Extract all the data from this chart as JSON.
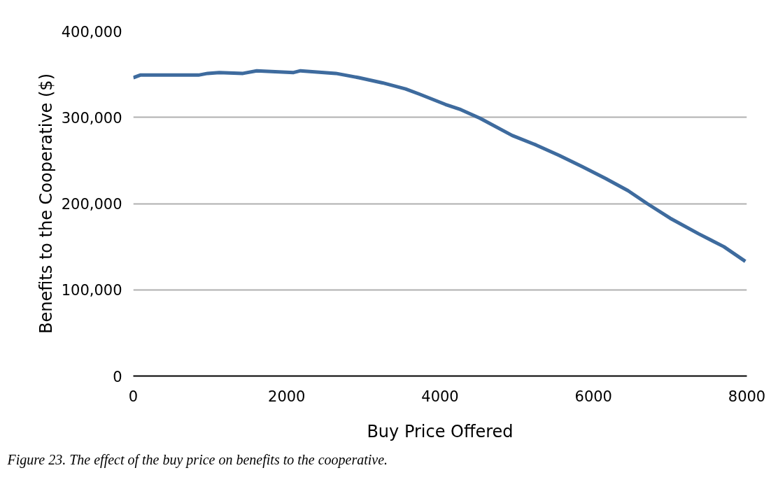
{
  "chart_data": {
    "type": "line",
    "xlabel": "Buy Price Offered",
    "ylabel": "Benefits to the Cooperative ($)",
    "annotations": [
      "Figure 23. The effect of  the buy price on benefits to the cooperative."
    ],
    "x": [
      0,
      90,
      500,
      850,
      970,
      1120,
      1430,
      1610,
      2090,
      2180,
      2640,
      2940,
      3250,
      3550,
      3730,
      4070,
      4270,
      4520,
      4940,
      5250,
      5550,
      5850,
      6160,
      6450,
      6700,
      7000,
      7370,
      7700,
      7980
    ],
    "series": [
      {
        "color": "#3e6b9e",
        "values": [
          346000,
          349000,
          349000,
          349000,
          351000,
          352000,
          351000,
          354000,
          352000,
          354000,
          351000,
          346000,
          340000,
          333000,
          327000,
          315000,
          309000,
          299000,
          279000,
          268000,
          256000,
          243000,
          229000,
          215000,
          200000,
          183000,
          165000,
          150000,
          133000
        ]
      }
    ],
    "xlim": [
      0,
      8000
    ],
    "xticks": [
      0,
      2000,
      4000,
      6000,
      8000
    ],
    "ylim": [
      0,
      400000
    ],
    "yticks": [
      {
        "value": 0,
        "label": "0"
      },
      {
        "value": 100000,
        "label": "100,000"
      },
      {
        "value": 200000,
        "label": "200,000"
      },
      {
        "value": 300000,
        "label": "300,000"
      },
      {
        "value": 400000,
        "label": "400,000"
      }
    ],
    "grid": "y"
  }
}
